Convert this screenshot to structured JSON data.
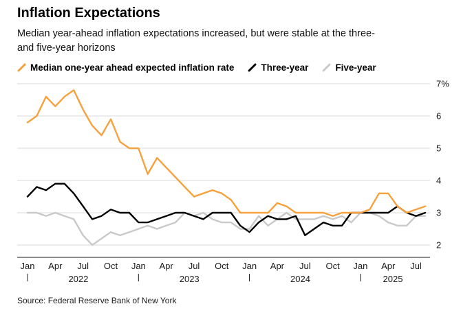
{
  "chart_data": {
    "type": "line",
    "title": "Inflation Expectations",
    "subtitle_lines": [
      "Median year-ahead inflation expectations increased, but were stable at the three-",
      "and five-year horizons"
    ],
    "source": "Source: Federal Reserve Bank of New York",
    "legend_position": "top",
    "grid": true,
    "ylim": [
      2,
      7
    ],
    "yticks": [
      2,
      3,
      4,
      5,
      6,
      7
    ],
    "ytick_labels": [
      "2",
      "3",
      "4",
      "5",
      "6",
      "7%"
    ],
    "xtick_months": [
      "Jan",
      "Apr",
      "Jul",
      "Oct"
    ],
    "x": [
      "Jan 2022",
      "Feb 2022",
      "Mar 2022",
      "Apr 2022",
      "May 2022",
      "Jun 2022",
      "Jul 2022",
      "Aug 2022",
      "Sep 2022",
      "Oct 2022",
      "Nov 2022",
      "Dec 2022",
      "Jan 2023",
      "Feb 2023",
      "Mar 2023",
      "Apr 2023",
      "May 2023",
      "Jun 2023",
      "Jul 2023",
      "Aug 2023",
      "Sep 2023",
      "Oct 2023",
      "Nov 2023",
      "Dec 2023",
      "Jan 2024",
      "Feb 2024",
      "Mar 2024",
      "Apr 2024",
      "May 2024",
      "Jun 2024",
      "Jul 2024",
      "Aug 2024",
      "Sep 2024",
      "Oct 2024",
      "Nov 2024",
      "Dec 2024",
      "Jan 2025",
      "Feb 2025",
      "Mar 2025",
      "Apr 2025",
      "May 2025",
      "Jun 2025",
      "Jul 2025",
      "Aug 2025"
    ],
    "series": [
      {
        "id": "one-year",
        "name": "Median one-year ahead expected inflation rate",
        "color": "#f7a13c",
        "values": [
          5.8,
          6.0,
          6.6,
          6.3,
          6.6,
          6.8,
          6.2,
          5.7,
          5.4,
          5.9,
          5.2,
          5.0,
          5.0,
          4.2,
          4.7,
          4.4,
          4.1,
          3.8,
          3.5,
          3.6,
          3.7,
          3.6,
          3.4,
          3.0,
          3.0,
          3.0,
          3.0,
          3.3,
          3.2,
          3.0,
          3.0,
          3.0,
          3.0,
          2.9,
          3.0,
          3.0,
          3.0,
          3.1,
          3.6,
          3.6,
          3.2,
          3.0,
          3.1,
          3.2
        ]
      },
      {
        "id": "three-year",
        "name": "Three-year",
        "color": "#000000",
        "values": [
          3.5,
          3.8,
          3.7,
          3.9,
          3.9,
          3.6,
          3.2,
          2.8,
          2.9,
          3.1,
          3.0,
          3.0,
          2.7,
          2.7,
          2.8,
          2.9,
          3.0,
          3.0,
          2.9,
          2.8,
          3.0,
          3.0,
          3.0,
          2.6,
          2.4,
          2.7,
          2.9,
          2.8,
          2.8,
          2.9,
          2.3,
          2.5,
          2.7,
          2.6,
          2.6,
          3.0,
          3.0,
          3.0,
          3.0,
          3.0,
          3.2,
          3.0,
          2.9,
          3.0
        ]
      },
      {
        "id": "five-year",
        "name": "Five-year",
        "color": "#c9c9c9",
        "values": [
          3.0,
          3.0,
          2.9,
          3.0,
          2.9,
          2.8,
          2.3,
          2.0,
          2.2,
          2.4,
          2.3,
          2.4,
          2.5,
          2.6,
          2.5,
          2.6,
          2.7,
          3.0,
          2.9,
          3.0,
          2.8,
          2.7,
          2.7,
          2.5,
          2.5,
          2.9,
          2.6,
          2.8,
          3.0,
          2.8,
          2.8,
          2.8,
          2.9,
          2.8,
          2.9,
          2.7,
          3.0,
          3.0,
          2.9,
          2.7,
          2.6,
          2.6,
          2.9,
          2.9
        ]
      }
    ],
    "colors": {
      "grid": "#d9d9d9",
      "axis": "#1a1a1a",
      "accent_orange": "#f7a13c",
      "gray_series": "#c9c9c9"
    }
  }
}
